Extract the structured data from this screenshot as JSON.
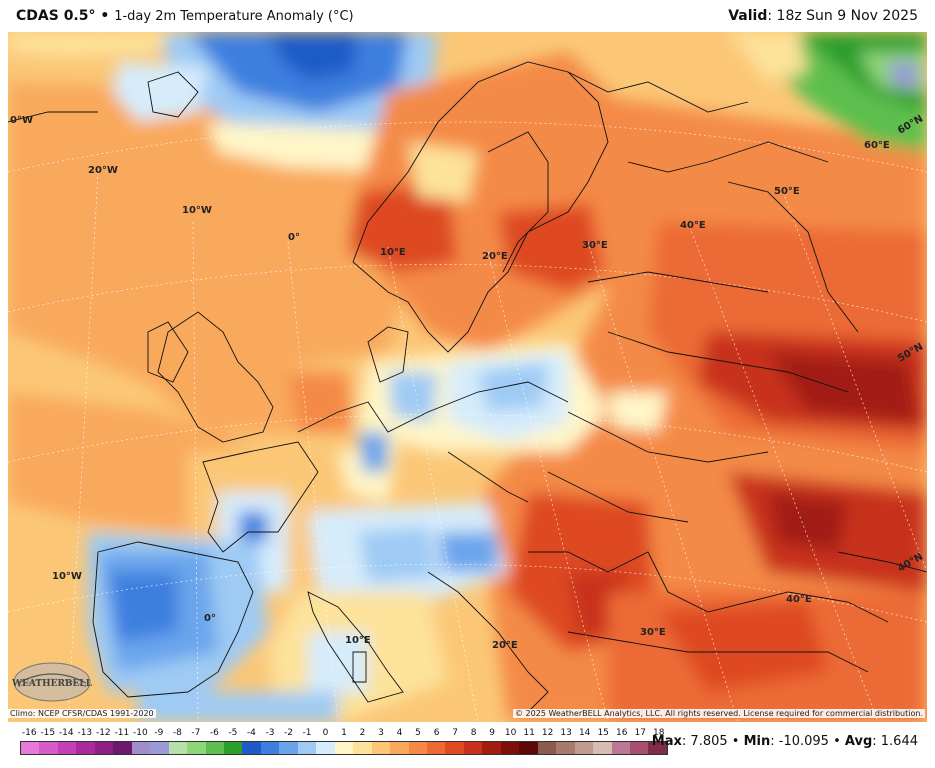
{
  "header": {
    "model": "CDAS 0.5°",
    "separator": "•",
    "product": "1-day 2m Temperature Anomaly (°C)",
    "valid_label": "Valid",
    "valid_time": ": 18z Sun 9 Nov 2025"
  },
  "map": {
    "labels": {
      "lon_30w": "0°W",
      "lon_20w_top": "20°W",
      "lon_10w_top": "10°W",
      "lon_0_top": "0°",
      "lon_10e_top": "10°E",
      "lon_20e_top": "20°E",
      "lon_30e_top": "30°E",
      "lon_40e_top": "40°E",
      "lon_50e_top": "50°E",
      "lon_60e_top": "60°E",
      "lat_60n": "60°N",
      "lat_50n": "50°N",
      "lat_40n": "40°N",
      "lon_10w_bottom": "10°W",
      "lon_0_bottom": "0°",
      "lon_10e_bottom": "10°E",
      "lon_20e_bottom": "20°E",
      "lon_30e_bottom": "30°E",
      "lon_40e_bottom": "40°E"
    },
    "logo_text": "WEATHERBELL"
  },
  "footer": {
    "climo": "Climo: NCEP CFSR/CDAS 1991-2020",
    "copyright": "© 2025 WeatherBELL Analytics, LLC. All rights reserved. License required for commercial distribution.",
    "stats": {
      "max_label": "Max",
      "max_value": ": 7.805",
      "sep1": " • ",
      "min_label": "Min",
      "min_value": ": -10.095",
      "sep2": " • ",
      "avg_label": "Avg",
      "avg_value": ": 1.644"
    }
  },
  "colorbar": {
    "ticks": [
      "-16",
      "-15",
      "-14",
      "-13",
      "-12",
      "-11",
      "-10",
      "-9",
      "-8",
      "-7",
      "-6",
      "-5",
      "-4",
      "-3",
      "-2",
      "-1",
      "0",
      "1",
      "2",
      "3",
      "4",
      "5",
      "6",
      "7",
      "8",
      "9",
      "10",
      "11",
      "12",
      "13",
      "14",
      "15",
      "16",
      "17",
      "18"
    ],
    "colors": [
      "#e879d8",
      "#d65cc9",
      "#c23fb8",
      "#a92a9f",
      "#8e1f86",
      "#6e1a6c",
      "#a08ec9",
      "#9a9ad6",
      "#b7e0a8",
      "#8fd67a",
      "#5dbf4e",
      "#2c9e2a",
      "#1e5bc8",
      "#3d7fdf",
      "#6aa5ec",
      "#9ecaf4",
      "#d6ecfb",
      "#fff6c8",
      "#fde29a",
      "#fbc777",
      "#f9a95c",
      "#f48a46",
      "#ec6a35",
      "#de4a24",
      "#c8301a",
      "#a21c12",
      "#7d0f0a",
      "#5e0906",
      "#8a5a4c",
      "#a77a6c",
      "#c19a8e",
      "#d8bcb2",
      "#b87896",
      "#a84f70",
      "#7e2c4a"
    ]
  }
}
